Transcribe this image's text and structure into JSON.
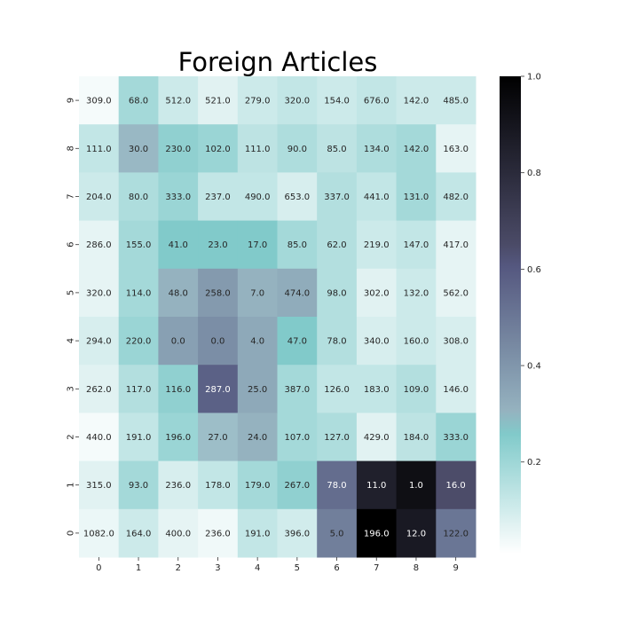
{
  "chart_data": {
    "type": "heatmap",
    "title": "Foreign Articles",
    "xlabel": "",
    "ylabel": "",
    "x_ticks": [
      "0",
      "1",
      "2",
      "3",
      "4",
      "5",
      "6",
      "7",
      "8",
      "9"
    ],
    "y_ticks": [
      "0",
      "1",
      "2",
      "3",
      "4",
      "5",
      "6",
      "7",
      "8",
      "9"
    ],
    "row_order": "top-to-bottom: 9 to 0",
    "annotations": [
      [
        "309.0",
        "68.0",
        "512.0",
        "521.0",
        "279.0",
        "320.0",
        "154.0",
        "676.0",
        "142.0",
        "485.0"
      ],
      [
        "111.0",
        "30.0",
        "230.0",
        "102.0",
        "111.0",
        "90.0",
        "85.0",
        "134.0",
        "142.0",
        "163.0"
      ],
      [
        "204.0",
        "80.0",
        "333.0",
        "237.0",
        "490.0",
        "653.0",
        "337.0",
        "441.0",
        "131.0",
        "482.0"
      ],
      [
        "286.0",
        "155.0",
        "41.0",
        "23.0",
        "17.0",
        "85.0",
        "62.0",
        "219.0",
        "147.0",
        "417.0"
      ],
      [
        "320.0",
        "114.0",
        "48.0",
        "258.0",
        "7.0",
        "474.0",
        "98.0",
        "302.0",
        "132.0",
        "562.0"
      ],
      [
        "294.0",
        "220.0",
        "0.0",
        "0.0",
        "4.0",
        "47.0",
        "78.0",
        "340.0",
        "160.0",
        "308.0"
      ],
      [
        "262.0",
        "117.0",
        "116.0",
        "287.0",
        "25.0",
        "387.0",
        "126.0",
        "183.0",
        "109.0",
        "146.0"
      ],
      [
        "440.0",
        "191.0",
        "196.0",
        "27.0",
        "24.0",
        "107.0",
        "127.0",
        "429.0",
        "184.0",
        "333.0"
      ],
      [
        "315.0",
        "93.0",
        "236.0",
        "178.0",
        "179.0",
        "267.0",
        "78.0",
        "11.0",
        "1.0",
        "16.0"
      ],
      [
        "1082.0",
        "164.0",
        "400.0",
        "236.0",
        "191.0",
        "396.0",
        "5.0",
        "196.0",
        "12.0",
        "122.0"
      ]
    ],
    "color_values": [
      [
        0.02,
        0.18,
        0.1,
        0.06,
        0.1,
        0.12,
        0.1,
        0.12,
        0.1,
        0.1
      ],
      [
        0.12,
        0.28,
        0.22,
        0.2,
        0.13,
        0.16,
        0.13,
        0.16,
        0.18,
        0.05
      ],
      [
        0.1,
        0.16,
        0.2,
        0.12,
        0.12,
        0.08,
        0.15,
        0.12,
        0.18,
        0.12
      ],
      [
        0.05,
        0.18,
        0.25,
        0.25,
        0.25,
        0.18,
        0.15,
        0.1,
        0.12,
        0.05
      ],
      [
        0.05,
        0.18,
        0.3,
        0.38,
        0.3,
        0.32,
        0.15,
        0.06,
        0.1,
        0.05
      ],
      [
        0.08,
        0.2,
        0.36,
        0.42,
        0.33,
        0.25,
        0.15,
        0.08,
        0.1,
        0.08
      ],
      [
        0.06,
        0.15,
        0.22,
        0.57,
        0.33,
        0.18,
        0.12,
        0.12,
        0.15,
        0.08
      ],
      [
        0.02,
        0.12,
        0.2,
        0.26,
        0.3,
        0.18,
        0.16,
        0.06,
        0.13,
        0.2
      ],
      [
        0.06,
        0.18,
        0.08,
        0.12,
        0.18,
        0.22,
        0.53,
        0.85,
        0.93,
        0.64
      ],
      [
        0.04,
        0.1,
        0.05,
        0.03,
        0.12,
        0.09,
        0.47,
        1.0,
        0.88,
        0.5
      ]
    ],
    "colorbar": {
      "vmin": 0.0,
      "vmax": 1.0,
      "ticks": [
        "0.2",
        "0.4",
        "0.6",
        "0.8",
        "1.0"
      ],
      "tick_values": [
        0.2,
        0.4,
        0.6,
        0.8,
        1.0
      ],
      "bottom_value": 0.01,
      "colormap": "bone_r"
    }
  }
}
